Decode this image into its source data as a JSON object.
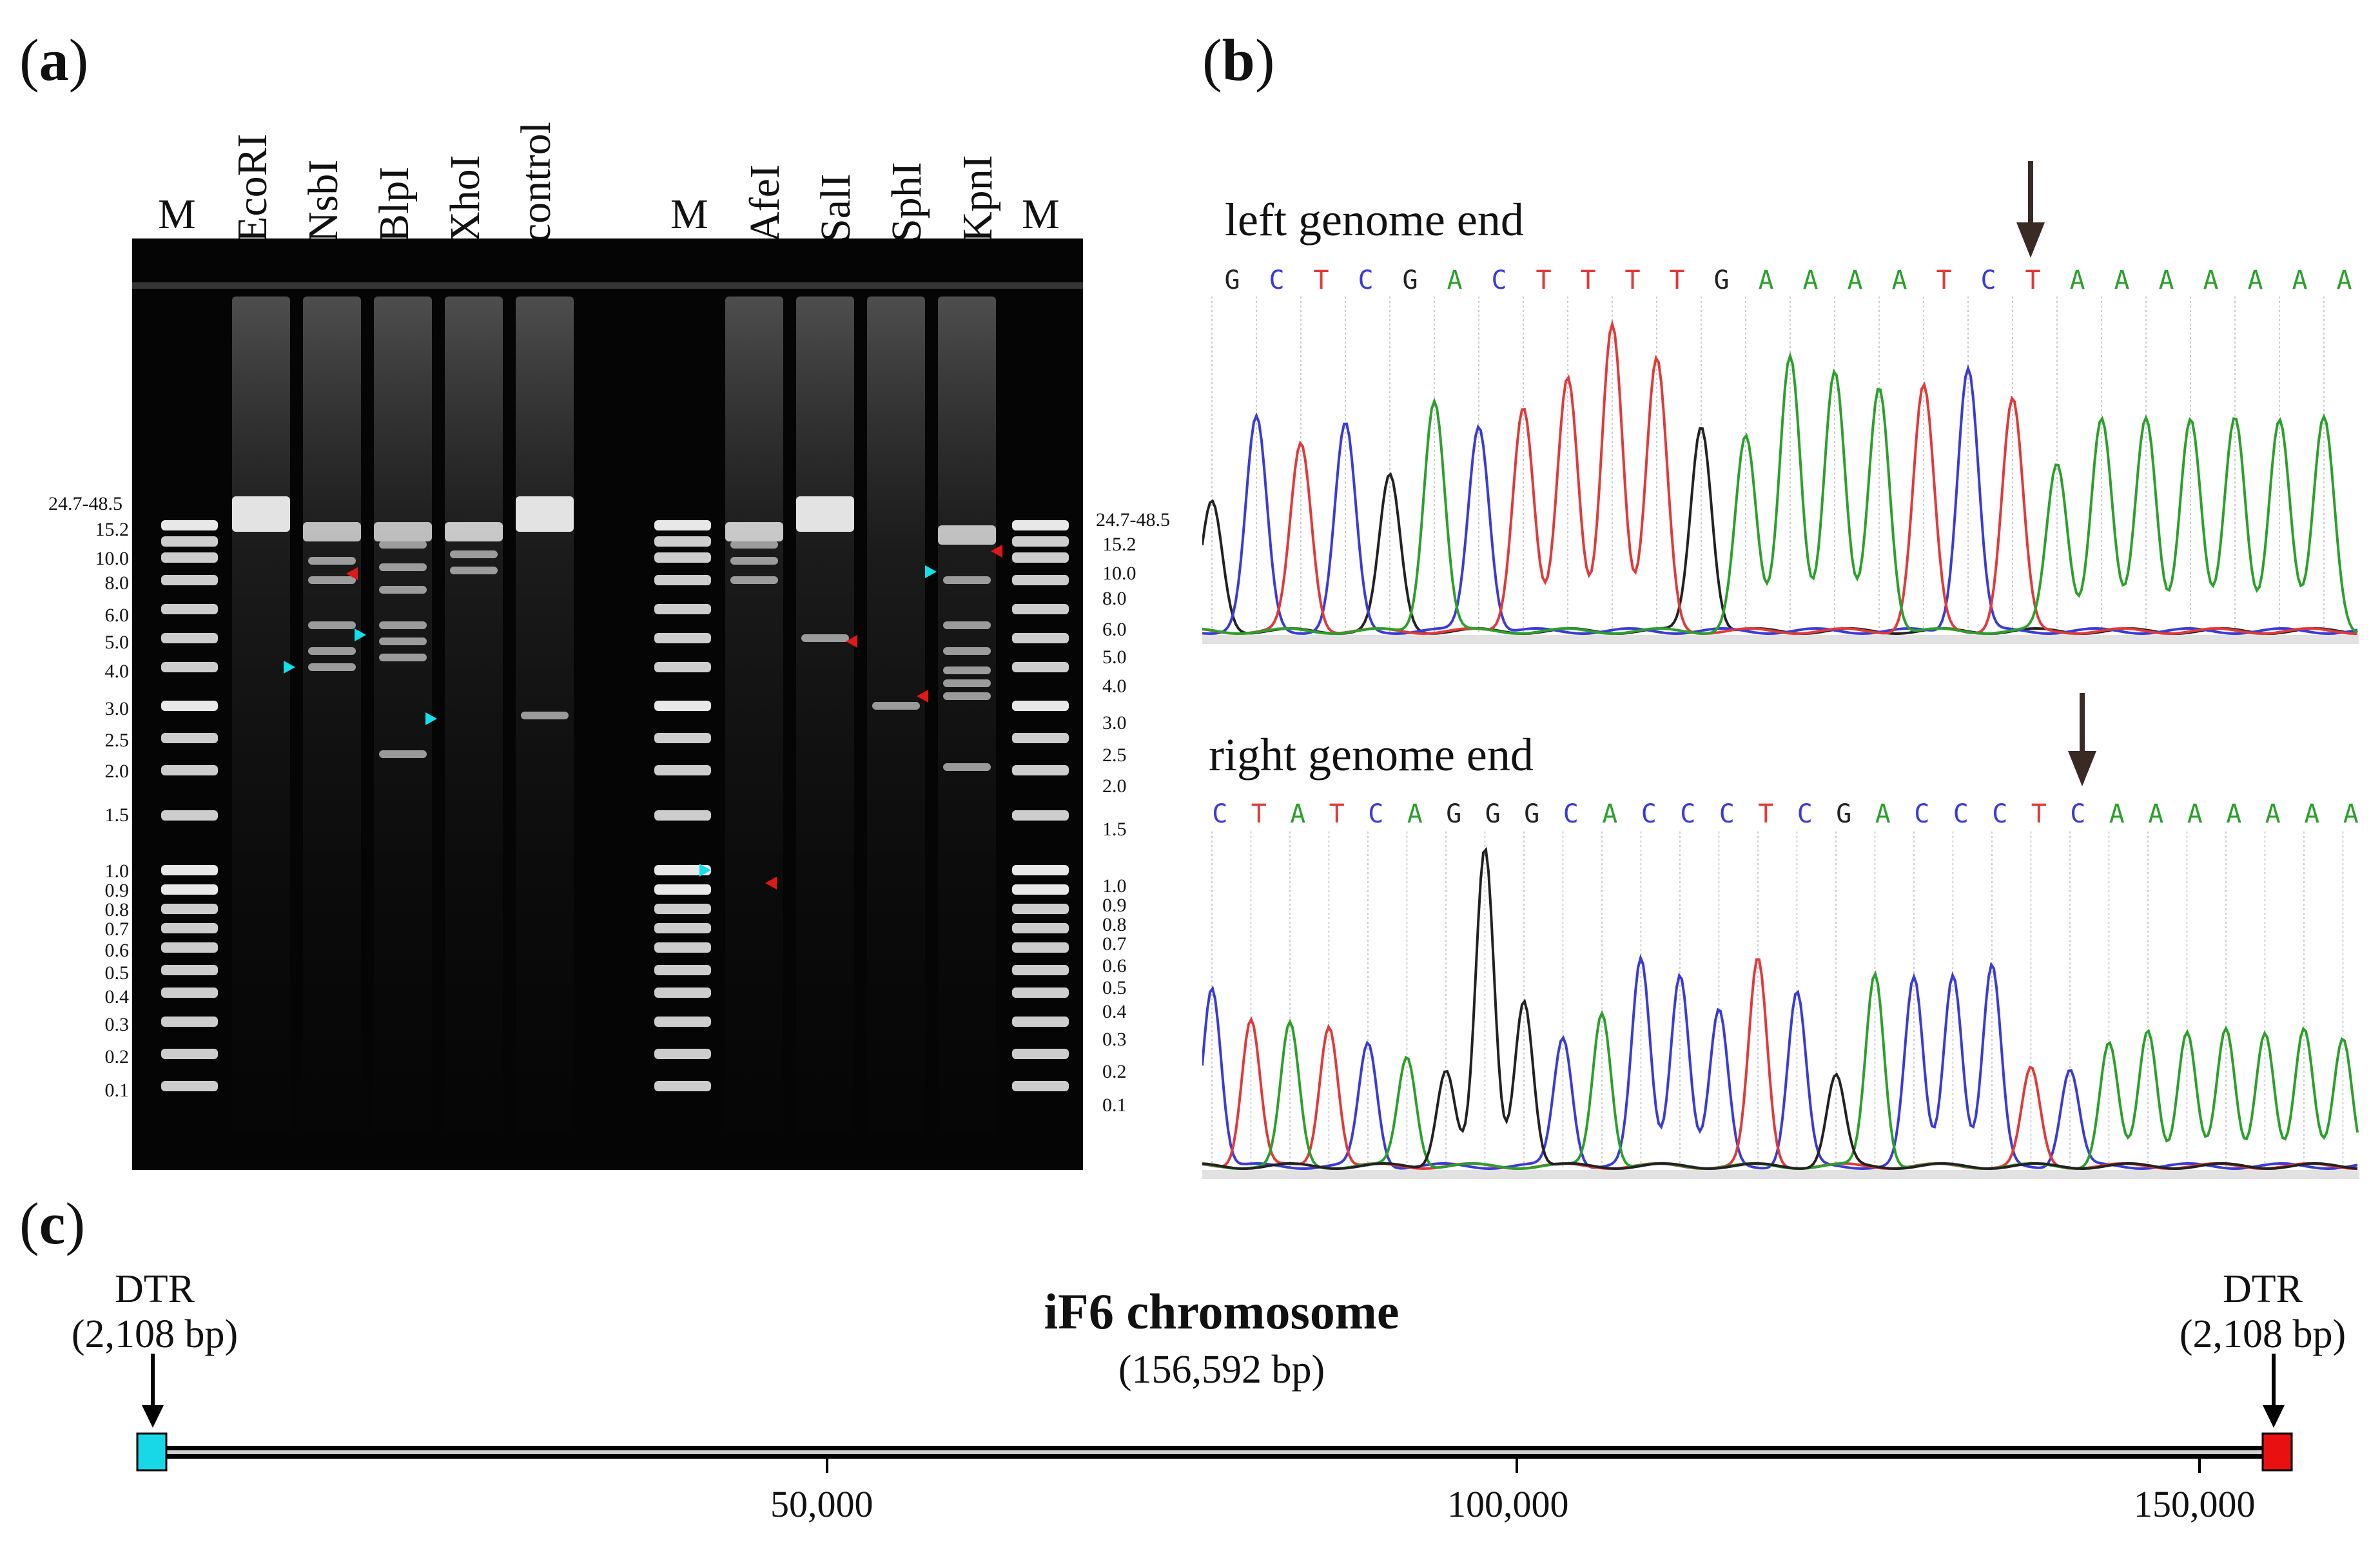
{
  "panels": {
    "a": "a",
    "b": "b",
    "c": "c"
  },
  "gel": {
    "lanes_left": [
      "M",
      "EcoRI",
      "NsbI",
      "BlpI",
      "XhoI",
      "control"
    ],
    "lanes_right": [
      "M",
      "AfeI",
      "SalI",
      "SphI",
      "KpnI",
      "M"
    ],
    "sizes_left": [
      "24.7-48.5",
      "15.2",
      "10.0",
      "8.0",
      "6.0",
      "5.0",
      "4.0",
      "3.0",
      "2.5",
      "2.0",
      "1.5",
      "1.0",
      "0.9",
      "0.8",
      "0.7",
      "0.6",
      "0.5",
      "0.4",
      "0.3",
      "0.2",
      "0.1"
    ],
    "sizes_right": [
      "24.7-48.5",
      "15.2",
      "10.0",
      "8.0",
      "6.0",
      "5.0",
      "4.0",
      "3.0",
      "2.5",
      "2.0",
      "1.5",
      "1.0",
      "0.9",
      "0.8",
      "0.7",
      "0.6",
      "0.5",
      "0.4",
      "0.3",
      "0.2",
      "0.1"
    ],
    "colors": {
      "cyan_marker": "#14e0ec",
      "red_marker": "#e01818"
    }
  },
  "traces": {
    "left": {
      "title": "left genome end",
      "sequence": [
        "G",
        "C",
        "T",
        "C",
        "G",
        "A",
        "C",
        "T",
        "T",
        "T",
        "T",
        "G",
        "A",
        "A",
        "A",
        "A",
        "T",
        "C",
        "T",
        "A",
        "A",
        "A",
        "A",
        "A",
        "A",
        "A"
      ]
    },
    "right": {
      "title": "right genome end",
      "sequence": [
        "C",
        "T",
        "A",
        "T",
        "C",
        "A",
        "G",
        "G",
        "G",
        "C",
        "A",
        "C",
        "C",
        "C",
        "T",
        "C",
        "G",
        "A",
        "C",
        "C",
        "C",
        "T",
        "C",
        "A",
        "A",
        "A",
        "A",
        "A",
        "A",
        "A"
      ]
    },
    "base_colors": {
      "A": "#2ca02c",
      "C": "#3b3bd6",
      "G": "#222222",
      "T": "#e03a3a"
    }
  },
  "chromosome": {
    "title": "iF6 chromosome",
    "length": "(156,592 bp)",
    "dtr_left": {
      "name": "DTR",
      "size": "(2,108 bp)"
    },
    "dtr_right": {
      "name": "DTR",
      "size": "(2,108 bp)"
    },
    "axis_labels": [
      "50,000",
      "100,000",
      "150,000"
    ],
    "colors": {
      "left_box": "#18d8e8",
      "right_box": "#e81010"
    }
  }
}
